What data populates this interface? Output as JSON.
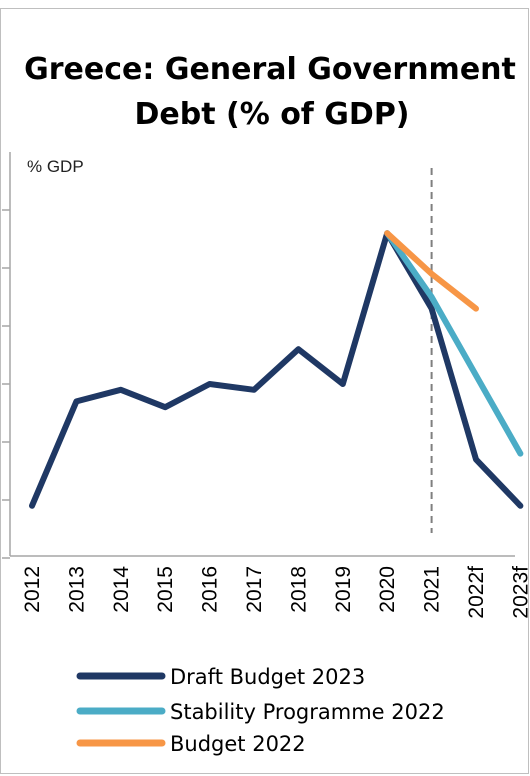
{
  "chart_data": {
    "type": "line",
    "title_lines": [
      "Greece: General Government",
      "Debt (% of GDP)"
    ],
    "ylabel": "% GDP",
    "categories": [
      "2012",
      "2013",
      "2014",
      "2015",
      "2016",
      "2017",
      "2018",
      "2019",
      "2020",
      "2021",
      "2022f",
      "2023f"
    ],
    "series": [
      {
        "name": "Draft Budget 2023",
        "color": "#1f3864",
        "values": [
          159,
          177,
          179,
          176,
          180,
          179,
          186,
          180,
          206,
          193,
          167,
          159
        ]
      },
      {
        "name": "Stability Programme 2022",
        "color": "#4bacc6",
        "values": [
          null,
          null,
          null,
          null,
          null,
          null,
          null,
          null,
          206,
          195,
          null,
          168
        ]
      },
      {
        "name": "Budget 2022",
        "color": "#f79646",
        "values": [
          null,
          null,
          null,
          null,
          null,
          null,
          null,
          null,
          206,
          199,
          193,
          null
        ]
      }
    ],
    "ylim": [
      150,
      210
    ],
    "vline_at": "2021",
    "legend_position": "bottom"
  }
}
